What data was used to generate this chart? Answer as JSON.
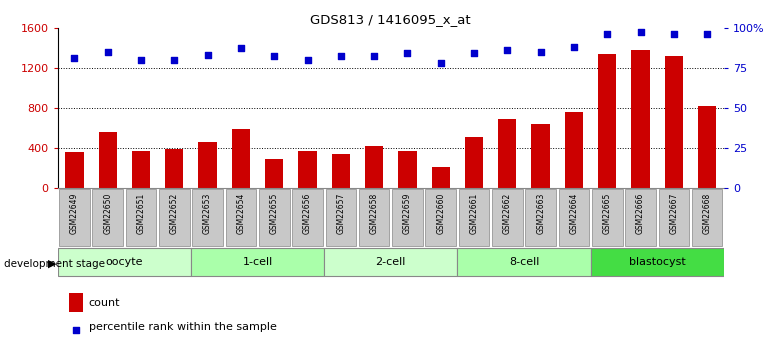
{
  "title": "GDS813 / 1416095_x_at",
  "samples": [
    "GSM22649",
    "GSM22650",
    "GSM22651",
    "GSM22652",
    "GSM22653",
    "GSM22654",
    "GSM22655",
    "GSM22656",
    "GSM22657",
    "GSM22658",
    "GSM22659",
    "GSM22660",
    "GSM22661",
    "GSM22662",
    "GSM22663",
    "GSM22664",
    "GSM22665",
    "GSM22666",
    "GSM22667",
    "GSM22668"
  ],
  "counts": [
    360,
    560,
    370,
    390,
    460,
    590,
    290,
    370,
    340,
    420,
    370,
    210,
    510,
    690,
    640,
    760,
    1340,
    1380,
    1320,
    820
  ],
  "percentiles": [
    81,
    85,
    80,
    80,
    83,
    87,
    82,
    80,
    82,
    82,
    84,
    78,
    84,
    86,
    85,
    88,
    96,
    97,
    96,
    96
  ],
  "groups": [
    {
      "label": "oocyte",
      "start": 0,
      "end": 3,
      "color": "#ccffcc"
    },
    {
      "label": "1-cell",
      "start": 4,
      "end": 7,
      "color": "#aaffaa"
    },
    {
      "label": "2-cell",
      "start": 8,
      "end": 11,
      "color": "#ccffcc"
    },
    {
      "label": "8-cell",
      "start": 12,
      "end": 15,
      "color": "#aaffaa"
    },
    {
      "label": "blastocyst",
      "start": 16,
      "end": 19,
      "color": "#44dd44"
    }
  ],
  "bar_color": "#cc0000",
  "dot_color": "#0000cc",
  "ylim_left": [
    0,
    1600
  ],
  "ylim_right": [
    0,
    100
  ],
  "yticks_left": [
    0,
    400,
    800,
    1200,
    1600
  ],
  "yticks_right": [
    0,
    25,
    50,
    75,
    100
  ],
  "yticklabels_right": [
    "0",
    "25",
    "50",
    "75",
    "100%"
  ],
  "xlabel_stage": "development stage",
  "legend_count": "count",
  "legend_percentile": "percentile rank within the sample",
  "background_color": "#ffffff",
  "tick_color_left": "#cc0000",
  "tick_color_right": "#0000cc",
  "sample_box_color": "#c8c8c8"
}
